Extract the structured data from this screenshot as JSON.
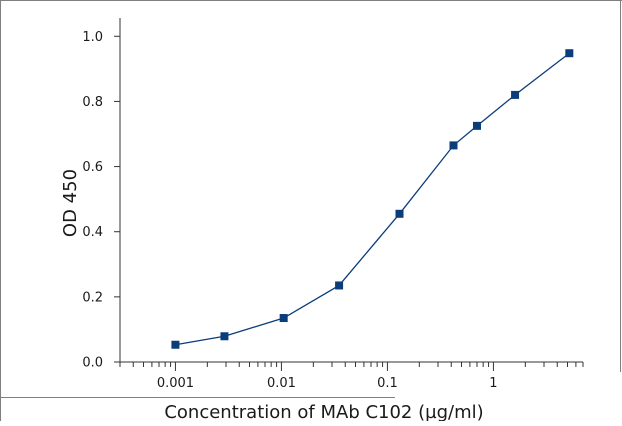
{
  "chart_data": {
    "type": "line",
    "title": "",
    "xlabel": "Concentration of MAb C102 (µg/ml)",
    "ylabel": "OD 450",
    "xscale": "log",
    "xlim": [
      0.0003,
      7
    ],
    "ylim": [
      0.0,
      1.05
    ],
    "x_ticks": [
      {
        "value": 0.001,
        "label": "0.001"
      },
      {
        "value": 0.01,
        "label": "0.01"
      },
      {
        "value": 0.1,
        "label": "0.1"
      },
      {
        "value": 1,
        "label": "1"
      }
    ],
    "y_ticks": [
      {
        "value": 0.0,
        "label": "0.0"
      },
      {
        "value": 0.2,
        "label": "0.2"
      },
      {
        "value": 0.4,
        "label": "0.4"
      },
      {
        "value": 0.6,
        "label": "0.6"
      },
      {
        "value": 0.8,
        "label": "0.8"
      },
      {
        "value": 1.0,
        "label": "1.0"
      }
    ],
    "grid": false,
    "legend": "none",
    "marker": "square",
    "series": [
      {
        "x": [
          0.001,
          0.0029,
          0.0105,
          0.035,
          0.13,
          0.42,
          0.7,
          1.6,
          5.2
        ],
        "y": [
          0.053,
          0.079,
          0.135,
          0.235,
          0.455,
          0.665,
          0.725,
          0.82,
          0.948
        ]
      }
    ],
    "colors": {
      "series": "#0b3d7a",
      "axis": "#333333",
      "frame": "#7f7f7f"
    }
  }
}
